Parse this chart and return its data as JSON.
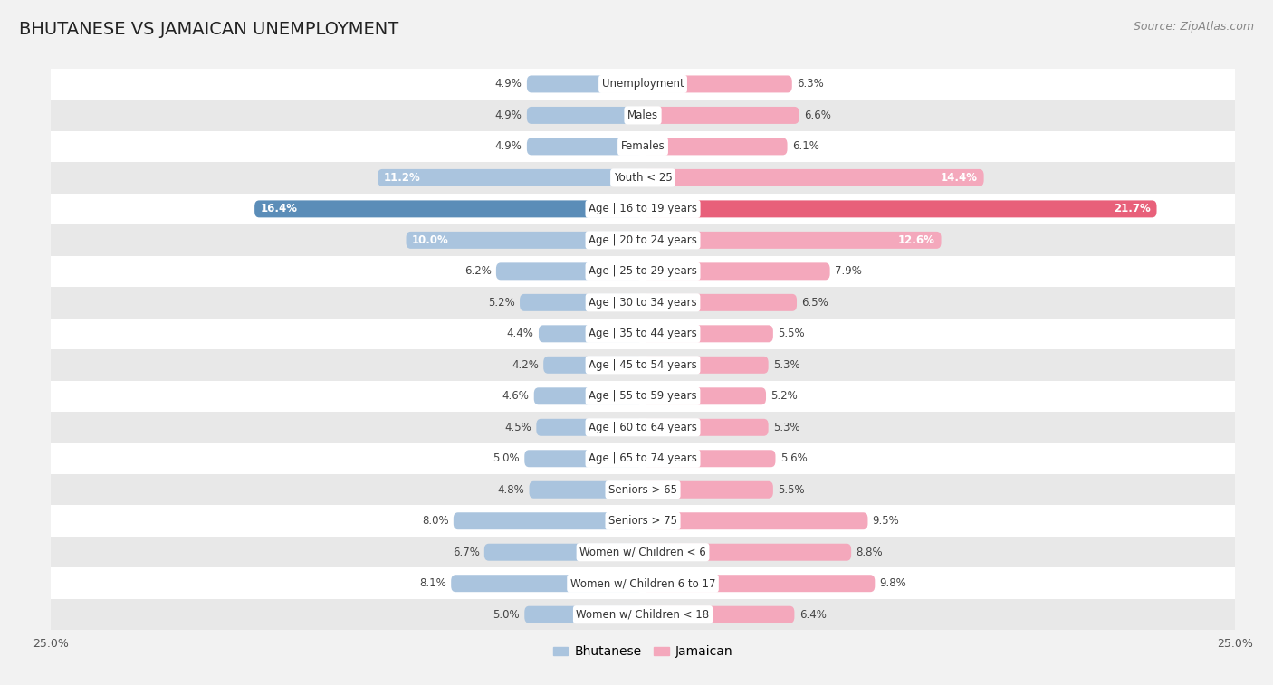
{
  "title": "BHUTANESE VS JAMAICAN UNEMPLOYMENT",
  "source": "Source: ZipAtlas.com",
  "categories": [
    "Unemployment",
    "Males",
    "Females",
    "Youth < 25",
    "Age | 16 to 19 years",
    "Age | 20 to 24 years",
    "Age | 25 to 29 years",
    "Age | 30 to 34 years",
    "Age | 35 to 44 years",
    "Age | 45 to 54 years",
    "Age | 55 to 59 years",
    "Age | 60 to 64 years",
    "Age | 65 to 74 years",
    "Seniors > 65",
    "Seniors > 75",
    "Women w/ Children < 6",
    "Women w/ Children 6 to 17",
    "Women w/ Children < 18"
  ],
  "bhutanese": [
    4.9,
    4.9,
    4.9,
    11.2,
    16.4,
    10.0,
    6.2,
    5.2,
    4.4,
    4.2,
    4.6,
    4.5,
    5.0,
    4.8,
    8.0,
    6.7,
    8.1,
    5.0
  ],
  "jamaican": [
    6.3,
    6.6,
    6.1,
    14.4,
    21.7,
    12.6,
    7.9,
    6.5,
    5.5,
    5.3,
    5.2,
    5.3,
    5.6,
    5.5,
    9.5,
    8.8,
    9.8,
    6.4
  ],
  "bhutanese_color": "#aac4de",
  "jamaican_color": "#f4a8bc",
  "bhutanese_highlight_color": "#5b8db8",
  "jamaican_highlight_color": "#e8607a",
  "label_color_dark": "#555555",
  "label_color_white": "#ffffff",
  "background_color": "#f2f2f2",
  "row_color_light": "#ffffff",
  "row_color_alt": "#e8e8e8",
  "axis_max": 25.0,
  "bar_height": 0.55,
  "title_fontsize": 14,
  "source_fontsize": 9,
  "label_fontsize": 8.5,
  "category_fontsize": 8.5,
  "legend_fontsize": 10
}
